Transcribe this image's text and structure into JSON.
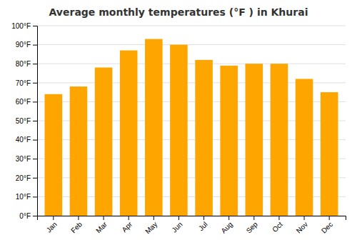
{
  "chart_data": {
    "type": "bar",
    "title": "Average monthly temperatures (°F ) in Khurai",
    "categories": [
      "Jan",
      "Feb",
      "Mar",
      "Apr",
      "May",
      "Jun",
      "Jul",
      "Aug",
      "Sep",
      "Oct",
      "Nov",
      "Dec"
    ],
    "values": [
      64,
      68,
      78,
      87,
      93,
      90,
      82,
      79,
      80,
      80,
      72,
      65
    ],
    "color": "#FFA500",
    "ylim": [
      0,
      100
    ],
    "yticks": [
      {
        "value": 0,
        "label": "0°F"
      },
      {
        "value": 10,
        "label": "10°F"
      },
      {
        "value": 20,
        "label": "20°F"
      },
      {
        "value": 30,
        "label": "30°F"
      },
      {
        "value": 40,
        "label": "40°F"
      },
      {
        "value": 50,
        "label": "50°F"
      },
      {
        "value": 60,
        "label": "60°F"
      },
      {
        "value": 70,
        "label": "70°F"
      },
      {
        "value": 80,
        "label": "80°F"
      },
      {
        "value": 90,
        "label": "90°F"
      },
      {
        "value": 100,
        "label": "100°F"
      }
    ],
    "grid": true
  }
}
